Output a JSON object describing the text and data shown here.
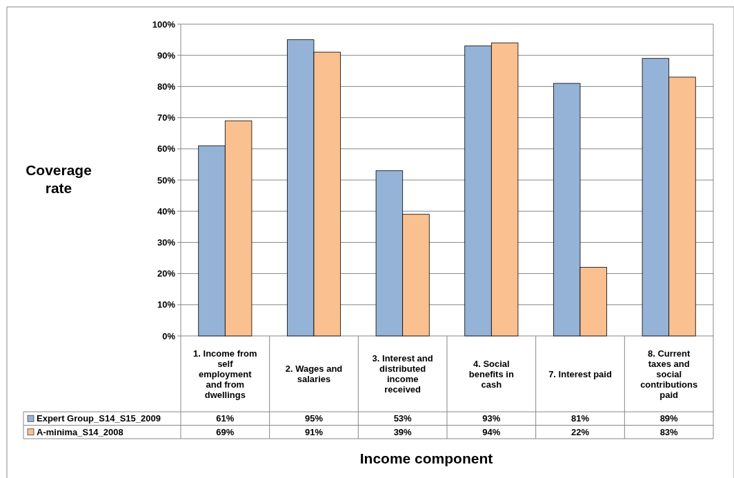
{
  "chart_data": {
    "type": "bar",
    "xlabel": "Income component",
    "ylabel": "Coverage rate",
    "categories": [
      "1. Income from self employment and from dwellings",
      "2. Wages and salaries",
      "3. Interest and distributed income received",
      "4. Social benefits in cash",
      "7. Interest paid",
      "8. Current taxes and social contributions paid"
    ],
    "series": [
      {
        "name": "Expert Group_S14_S15_2009",
        "color": "#95b3d7",
        "values": [
          61,
          95,
          53,
          93,
          81,
          89
        ],
        "value_labels": [
          "61%",
          "95%",
          "53%",
          "93%",
          "81%",
          "89%"
        ]
      },
      {
        "name": "A-minima_S14_2008",
        "color": "#fac090",
        "values": [
          69,
          91,
          39,
          94,
          22,
          83
        ],
        "value_labels": [
          "69%",
          "91%",
          "39%",
          "94%",
          "22%",
          "83%"
        ]
      }
    ],
    "ylim": [
      0,
      100
    ],
    "yticks": [
      {
        "value": 0,
        "label": "0%"
      },
      {
        "value": 10,
        "label": "10%"
      },
      {
        "value": 20,
        "label": "20%"
      },
      {
        "value": 30,
        "label": "30%"
      },
      {
        "value": 40,
        "label": "40%"
      },
      {
        "value": 50,
        "label": "50%"
      },
      {
        "value": 60,
        "label": "60%"
      },
      {
        "value": 70,
        "label": "70%"
      },
      {
        "value": 80,
        "label": "80%"
      },
      {
        "value": 90,
        "label": "90%"
      },
      {
        "value": 100,
        "label": "100%"
      }
    ],
    "grid": "y",
    "legend": "bottom left"
  }
}
